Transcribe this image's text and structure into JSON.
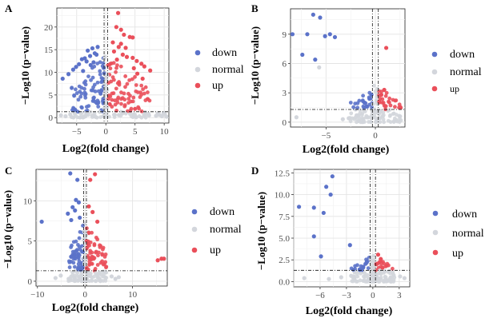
{
  "colors": {
    "down": "#5b72c9",
    "normal": "#d3d6dc",
    "up": "#ea4f5a",
    "panel_bg": "#ffffff",
    "grid_major": "#e4e4e4",
    "grid_minor": "#f1f1f1",
    "axis_text": "#4d4d4d",
    "text": "#000000"
  },
  "chart_data": [
    {
      "type": "scatter",
      "panel_label": "A",
      "title": "",
      "xlabel": "Log2(fold change)",
      "ylabel": "−Log10 (p−value)",
      "xlim": [
        -8.4,
        10.8
      ],
      "ylim": [
        -1.2,
        24.2
      ],
      "xticks": [
        -5,
        0,
        5,
        10
      ],
      "xtick_labels": [
        "−5",
        "0",
        "5",
        "10"
      ],
      "yticks": [
        0,
        5,
        10,
        15,
        20
      ],
      "ytick_labels": [
        "0",
        "5",
        "10",
        "15",
        "20"
      ],
      "thresholds": {
        "x": [
          -0.3,
          0.3
        ],
        "y": 1.3
      },
      "legend": {
        "position": "right",
        "entries": [
          "down",
          "normal",
          "up"
        ]
      },
      "cloud": {
        "xmin": -6,
        "xmax": 7.5,
        "ymax": 13.5,
        "count": 260
      },
      "series": [
        {
          "name": "down",
          "x": [
            -1.4,
            -2.3,
            -3.1,
            -1.9,
            -2.7,
            -3.6,
            -4.6,
            -5.1,
            -5.6,
            -6.4,
            -7.4,
            -3.3,
            -4.1,
            -2.1,
            -1.6,
            -2.6,
            -3.9
          ],
          "y": [
            15.6,
            15.3,
            14.8,
            14.2,
            13.6,
            13.1,
            11.8,
            11.2,
            10.6,
            9.6,
            8.6,
            12.4,
            12.9,
            12.2,
            13.9,
            11.6,
            10.3
          ]
        },
        {
          "name": "up",
          "x": [
            2.1,
            1.8,
            2.6,
            3.1,
            4.1,
            4.6,
            2.6,
            2.2,
            3.4,
            1.4,
            4.6,
            5.3,
            6.1,
            6.6,
            7.6,
            1.2,
            2.9,
            3.6,
            1.9,
            5.4,
            4.8,
            6.3
          ],
          "y": [
            23.1,
            20.0,
            19.4,
            18.3,
            17.8,
            17.7,
            16.3,
            15.6,
            15.4,
            14.6,
            13.2,
            12.5,
            11.9,
            11.3,
            10.4,
            16.6,
            13.9,
            13.4,
            12.8,
            9.7,
            10.9,
            8.6
          ]
        },
        {
          "name": "normal",
          "x": [
            9.2,
            9.6,
            10.1,
            10.4,
            8.6,
            7.4,
            9.9,
            -6.9,
            -7.7,
            8.9,
            -6.1
          ],
          "y": [
            0.6,
            0.3,
            0.8,
            0.2,
            0.4,
            0.5,
            1.0,
            0.3,
            0.5,
            0.9,
            0.7
          ]
        }
      ]
    },
    {
      "type": "scatter",
      "panel_label": "B",
      "title": "",
      "xlabel": "Log2(fold change)",
      "ylabel": "−Log10 (p−value)",
      "xlim": [
        -8.6,
        3.0
      ],
      "ylim": [
        -0.5,
        11.6
      ],
      "xticks": [
        -5,
        0
      ],
      "xtick_labels": [
        "−5",
        "0"
      ],
      "yticks": [
        0,
        3,
        6,
        9
      ],
      "ytick_labels": [
        "0",
        "3",
        "6",
        "9"
      ],
      "thresholds": {
        "x": [
          -0.3,
          0.3
        ],
        "y": 1.3
      },
      "legend": {
        "position": "right",
        "entries": [
          "down",
          "normal",
          "up"
        ]
      },
      "cloud": {
        "xmin": -2.6,
        "xmax": 2.6,
        "ymax": 3.5,
        "count": 150
      },
      "series": [
        {
          "name": "down",
          "x": [
            -8.4,
            -6.9,
            -6.3,
            -5.6,
            -4.6,
            -4.1,
            -5.1,
            -7.4,
            -6.1,
            -0.6,
            -1.1,
            -0.9,
            -0.4
          ],
          "y": [
            9.0,
            9.0,
            11.0,
            10.7,
            9.0,
            8.7,
            8.8,
            6.9,
            6.4,
            2.4,
            2.0,
            1.6,
            2.8
          ]
        },
        {
          "name": "up",
          "x": [
            1.1,
            0.6,
            0.9,
            0.4
          ],
          "y": [
            7.6,
            2.8,
            3.3,
            2.1
          ]
        },
        {
          "name": "normal",
          "x": [
            -8.0,
            -5.7,
            -2.7,
            -1.9,
            2.5,
            -3.3
          ],
          "y": [
            0.5,
            5.6,
            0.4,
            0.7,
            0.6,
            0.3
          ]
        }
      ]
    },
    {
      "type": "scatter",
      "panel_label": "C",
      "title": "",
      "xlabel": "Log2(fold change)",
      "ylabel": "−Log10 (p−value)",
      "xlim": [
        -10.3,
        17.3
      ],
      "ylim": [
        -0.6,
        13.9
      ],
      "xticks": [
        -10,
        0,
        10
      ],
      "xtick_labels": [
        "−10",
        "0",
        "10"
      ],
      "yticks": [
        0,
        5,
        10
      ],
      "ytick_labels": [
        "0",
        "5",
        "10"
      ],
      "thresholds": {
        "x": [
          -0.3,
          0.3
        ],
        "y": 1.3
      },
      "legend": {
        "position": "right",
        "entries": [
          "down",
          "normal",
          "up"
        ]
      },
      "cloud": {
        "xmin": -3.5,
        "xmax": 4.5,
        "ymax": 7.3,
        "count": 220
      },
      "series": [
        {
          "name": "down",
          "x": [
            -3.1,
            -1.6,
            -1.9,
            -2.6,
            -3.6,
            -1.1,
            -9.1,
            -2.1,
            -1.3,
            -2.9
          ],
          "y": [
            13.4,
            12.6,
            10.1,
            9.2,
            8.4,
            7.9,
            7.4,
            8.8,
            9.8,
            7.6
          ]
        },
        {
          "name": "up",
          "x": [
            2.1,
            1.1,
            15.3,
            16.1,
            16.6,
            1.6,
            2.6,
            0.8
          ],
          "y": [
            13.3,
            12.6,
            2.6,
            2.8,
            2.8,
            8.6,
            7.4,
            9.3
          ]
        },
        {
          "name": "normal",
          "x": [
            -6.2,
            5.6,
            6.4,
            -5.1,
            7.1
          ],
          "y": [
            0.4,
            0.6,
            0.3,
            0.7,
            0.5
          ]
        }
      ]
    },
    {
      "type": "scatter",
      "panel_label": "D",
      "title": "",
      "xlabel": "Log2(fold change)",
      "ylabel": "−Log10 (p−value)",
      "xlim": [
        -9.0,
        4.2
      ],
      "ylim": [
        -0.6,
        12.9
      ],
      "xticks": [
        -6,
        -3,
        0,
        3
      ],
      "xtick_labels": [
        "−6",
        "−3",
        "0",
        "3"
      ],
      "yticks": [
        0.0,
        2.5,
        5.0,
        7.5,
        10.0,
        12.5
      ],
      "ytick_labels": [
        "0.0",
        "2.5",
        "5.0",
        "7.5",
        "10.0",
        "12.5"
      ],
      "thresholds": {
        "x": [
          -0.3,
          0.3
        ],
        "y": 1.3
      },
      "legend": {
        "position": "right",
        "entries": [
          "down",
          "normal",
          "up"
        ]
      },
      "cloud": {
        "xmin": -2.5,
        "xmax": 2.5,
        "ymax": 2.6,
        "count": 150
      },
      "series": [
        {
          "name": "down",
          "x": [
            -4.6,
            -5.3,
            -4.8,
            -8.4,
            -6.7,
            -5.6,
            -6.7,
            -5.9,
            -2.6,
            -1.1,
            -0.7,
            -1.5
          ],
          "y": [
            12.1,
            10.9,
            10.0,
            8.6,
            8.5,
            7.9,
            5.2,
            2.9,
            4.2,
            1.7,
            2.2,
            1.4
          ]
        },
        {
          "name": "up",
          "x": [
            0.6,
            0.9,
            0.4,
            1.1
          ],
          "y": [
            3.1,
            2.6,
            2.0,
            1.6
          ]
        },
        {
          "name": "normal",
          "x": [
            -7.8,
            -5.0,
            3.1,
            3.6,
            -3.6
          ],
          "y": [
            0.4,
            0.3,
            0.6,
            0.4,
            0.5
          ]
        }
      ]
    }
  ]
}
